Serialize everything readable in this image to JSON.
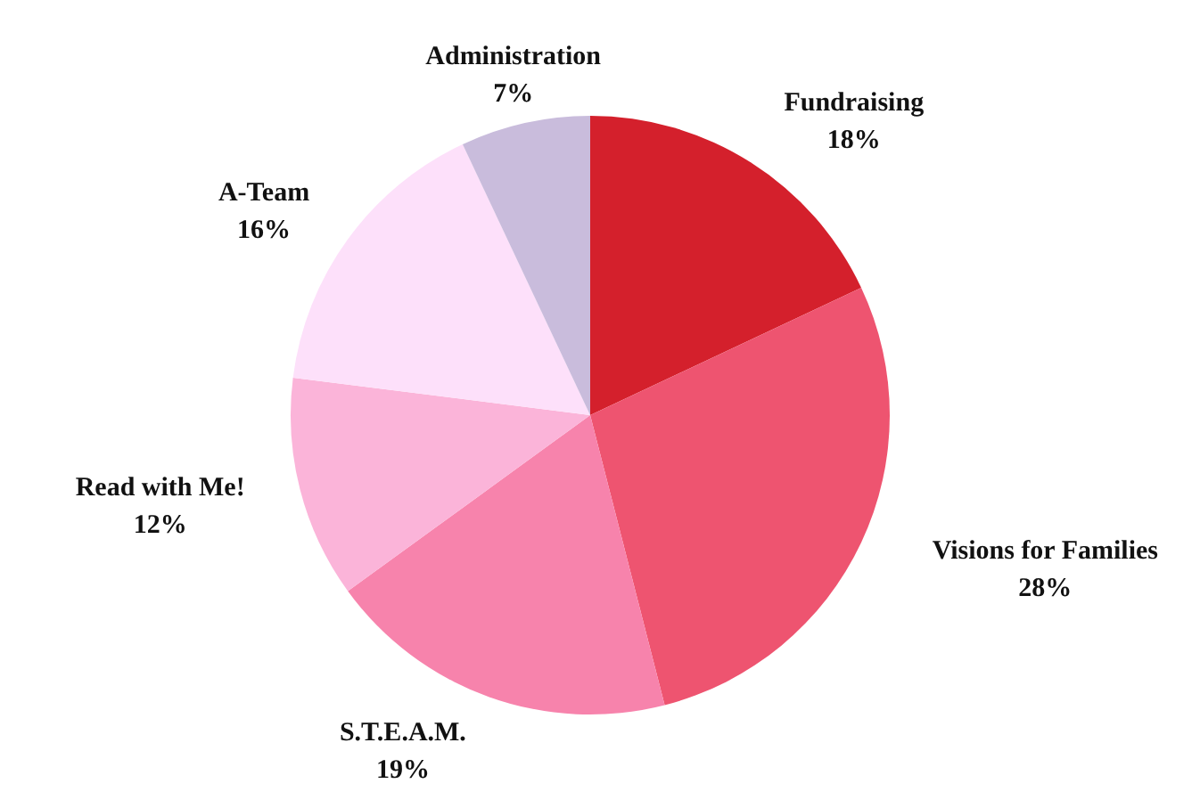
{
  "chart_data": {
    "type": "pie",
    "categories": [
      "Fundraising",
      "Visions for Families",
      "S.T.E.A.M.",
      "Read with Me!",
      "A-Team",
      "Administration"
    ],
    "values": [
      18,
      28,
      19,
      12,
      16,
      7
    ],
    "colors": [
      "#d4202c",
      "#ee5470",
      "#f783ac",
      "#fbb4d9",
      "#fde0fa",
      "#c9bcdc"
    ],
    "value_labels": [
      "18%",
      "28%",
      "19%",
      "12%",
      "16%",
      "7%"
    ]
  }
}
